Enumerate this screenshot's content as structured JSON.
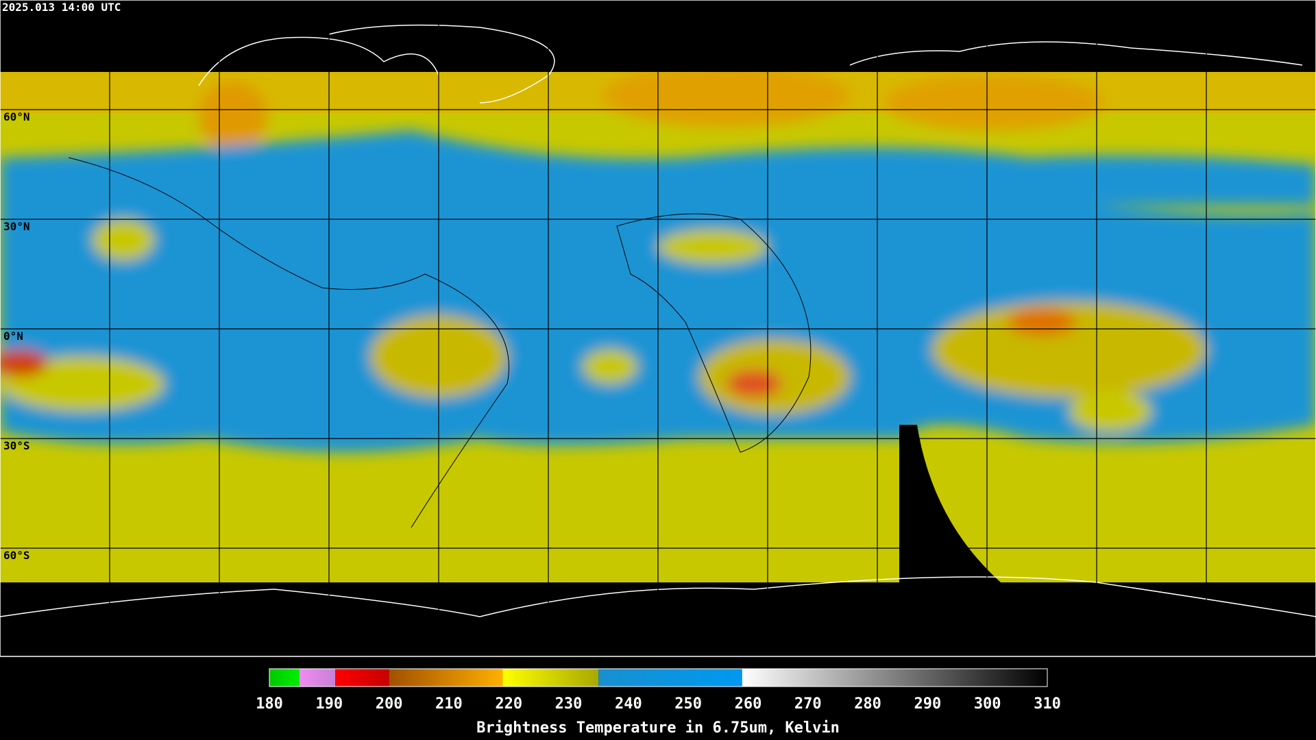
{
  "header": {
    "title": "2025.013 14:00 UTC"
  },
  "map": {
    "lat_grid": [
      {
        "value": 60,
        "label": "60°N"
      },
      {
        "value": 30,
        "label": "30°N"
      },
      {
        "value": 0,
        "label": "0°N"
      },
      {
        "value": -30,
        "label": "30°S"
      },
      {
        "value": -60,
        "label": "60°S"
      }
    ]
  },
  "colorbar": {
    "title": "Brightness Temperature in 6.75um, Kelvin",
    "range": [
      180,
      310
    ],
    "ticks": [
      180,
      190,
      200,
      210,
      220,
      230,
      240,
      250,
      260,
      270,
      280,
      290,
      300,
      310
    ],
    "segments": [
      {
        "from": 180,
        "to": 185,
        "colors": [
          "#00c800",
          "#00f000"
        ]
      },
      {
        "from": 185,
        "to": 191,
        "colors": [
          "#f08cf0",
          "#c880d8"
        ]
      },
      {
        "from": 191,
        "to": 200,
        "colors": [
          "#ff0000",
          "#c80000"
        ]
      },
      {
        "from": 200,
        "to": 219,
        "colors": [
          "#a05000",
          "#ffb000"
        ]
      },
      {
        "from": 219,
        "to": 235,
        "colors": [
          "#ffff00",
          "#a8a800"
        ]
      },
      {
        "from": 235,
        "to": 259,
        "colors": [
          "#1890d0",
          "#0098f0"
        ]
      },
      {
        "from": 259,
        "to": 310,
        "colors": [
          "#ffffff",
          "#000000"
        ]
      }
    ]
  }
}
